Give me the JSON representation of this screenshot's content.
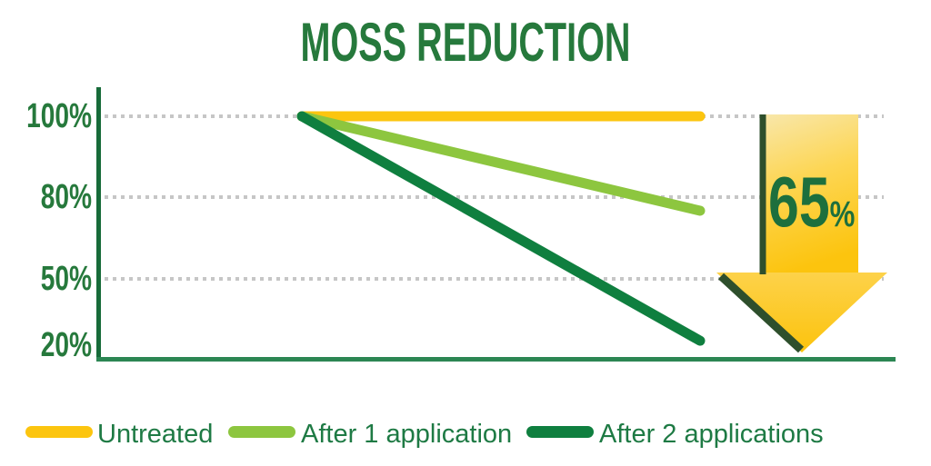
{
  "chart_data": {
    "type": "line",
    "title": "MOSS REDUCTION",
    "y_ticks": [
      "100%",
      "80%",
      "50%",
      "20%"
    ],
    "y_tick_values": [
      100,
      80,
      50,
      20
    ],
    "ylim": [
      20,
      100
    ],
    "grid": "dotted horizontal gridlines at 100%, 80%, 50%",
    "legend_position": "bottom",
    "series": [
      {
        "name": "Untreated",
        "color": "#fcc50f",
        "values": [
          100,
          100
        ]
      },
      {
        "name": "After 1 application",
        "color": "#8dc63f",
        "values": [
          100,
          75
        ]
      },
      {
        "name": "After 2 applications",
        "color": "#0f7f3f",
        "values": [
          100,
          22
        ]
      }
    ],
    "annotation": {
      "value": "65",
      "unit": "%"
    }
  },
  "colors": {
    "title_green": "#26793c",
    "axis_green": "#176b39",
    "arrow_yellow": "#fcc40e",
    "arrow_yellow_light": "#f8e7ab",
    "arrow_edge_dark_green": "#2e4f2c",
    "annotation_green": "#1d6f3d",
    "legend_text_green": "#1e7a44",
    "gridline_gray": "#c6c6c6"
  }
}
